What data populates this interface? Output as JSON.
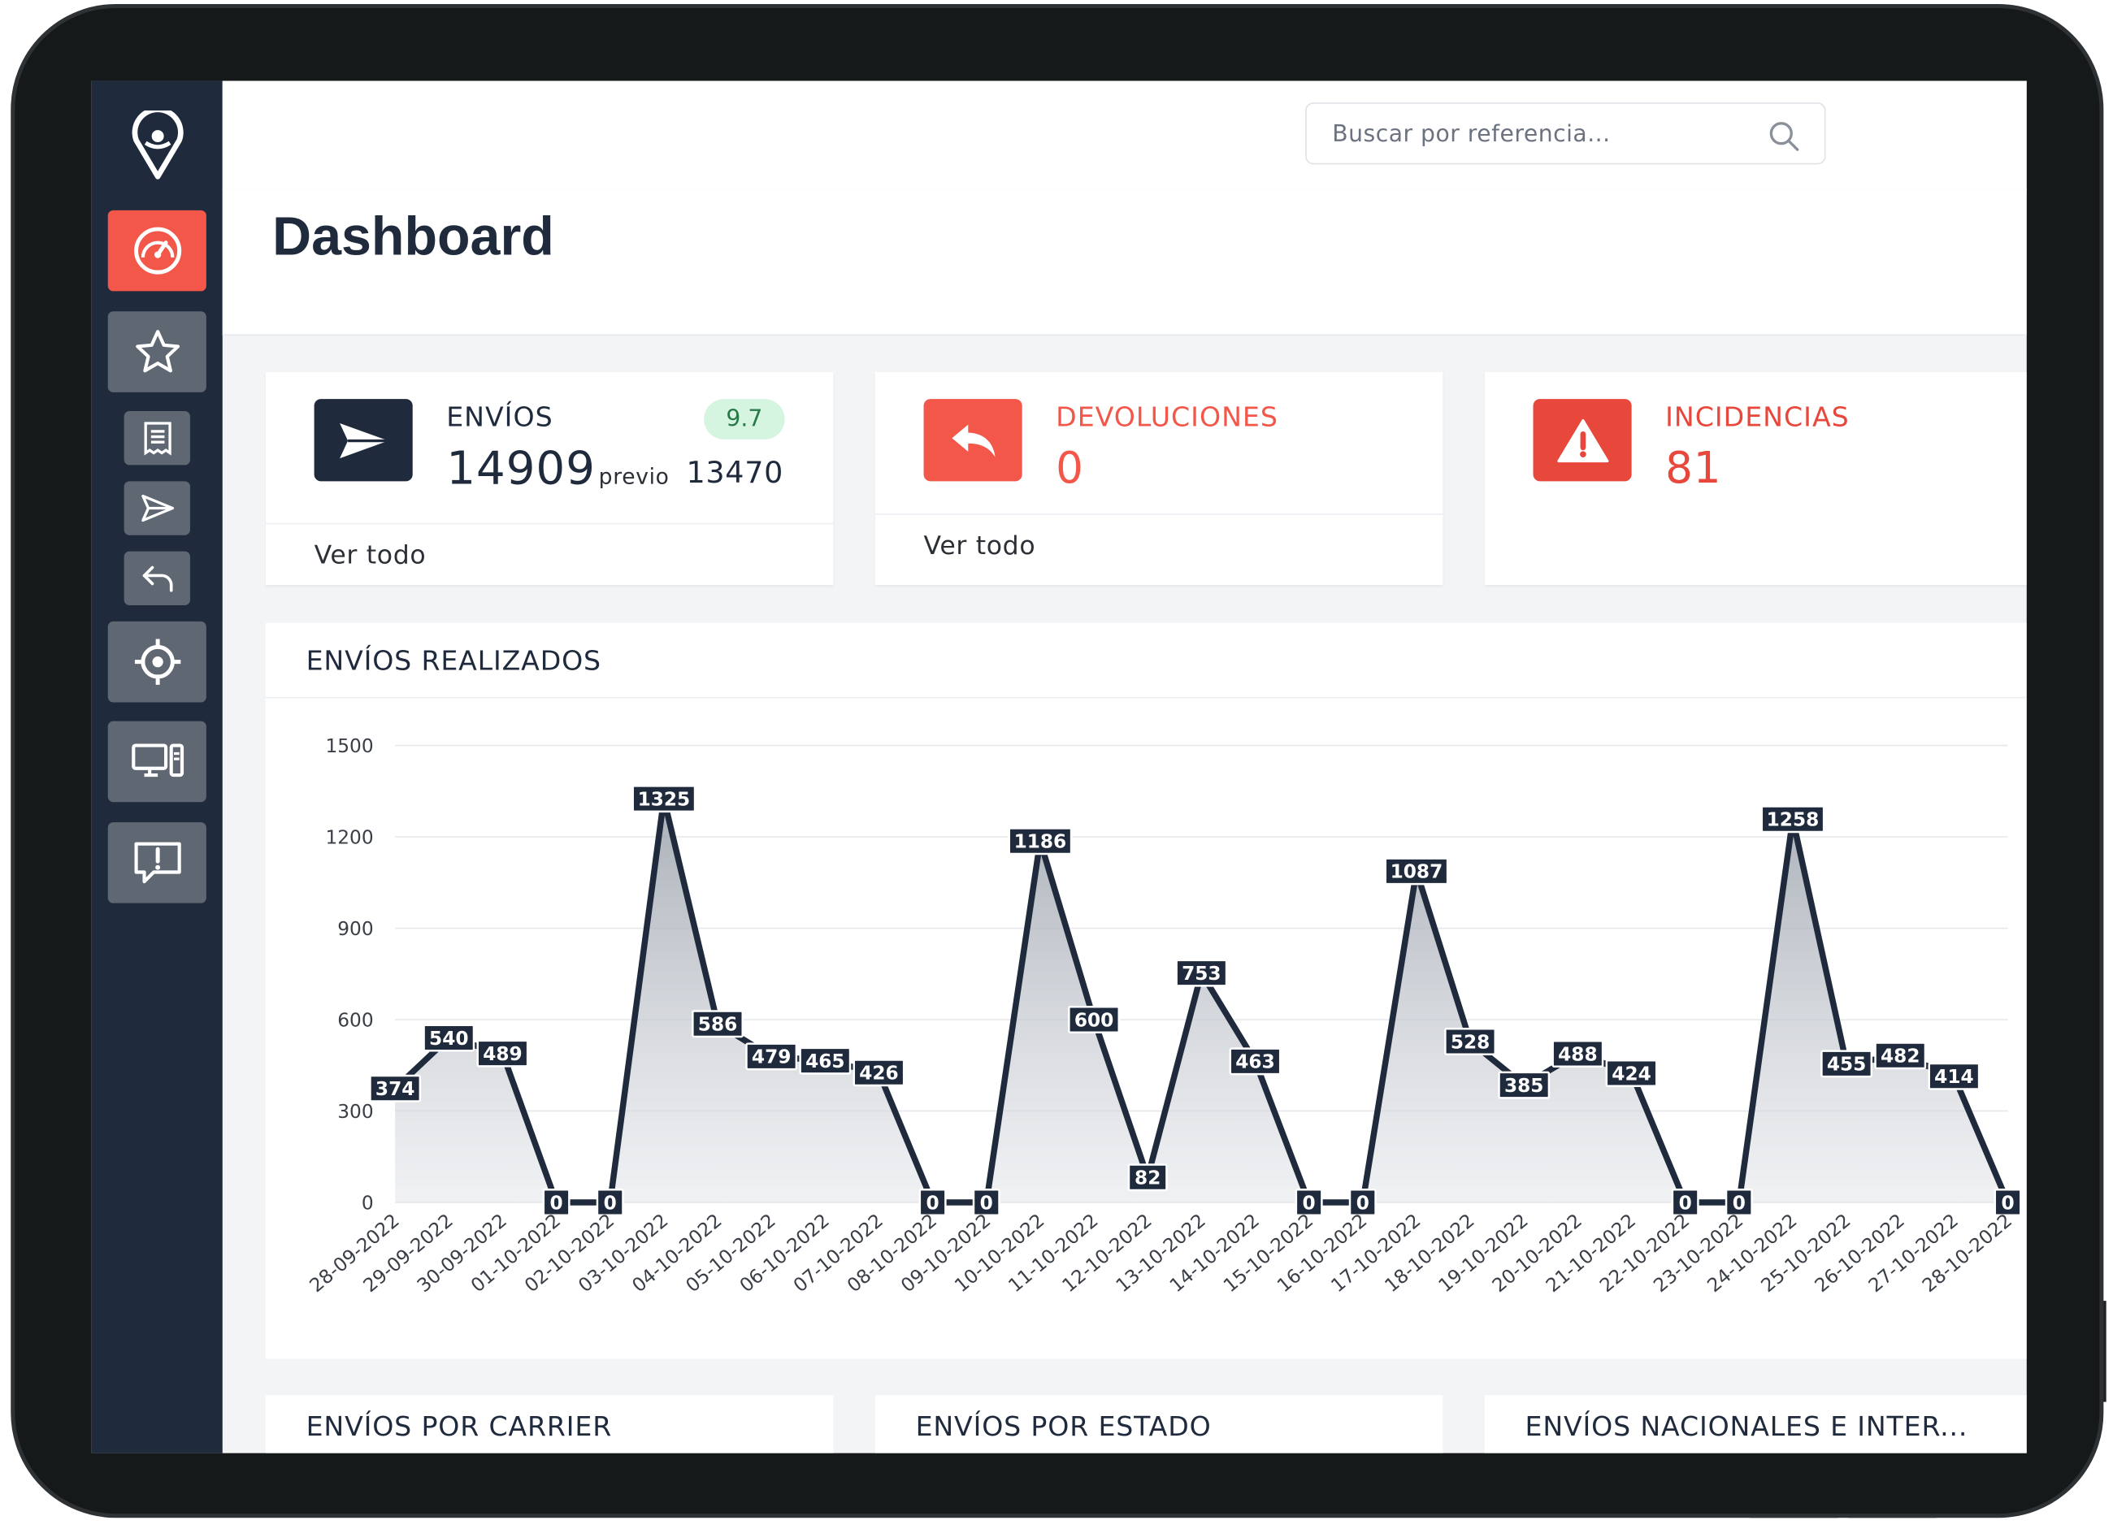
{
  "search": {
    "placeholder": "Buscar por referencia..."
  },
  "page_title": "Dashboard",
  "cards": {
    "envios": {
      "label": "ENVÍOS",
      "value": "14909",
      "previous_label": "previo",
      "previous_value": "13470",
      "change_badge": "9.7",
      "link": "Ver todo",
      "color": "#1f2a3c"
    },
    "devoluciones": {
      "label": "DEVOLUCIONES",
      "value": "0",
      "link": "Ver todo",
      "color": "#f2574a"
    },
    "incidencias": {
      "label": "INCIDENCIAS",
      "value": "81",
      "color": "#e8473b"
    }
  },
  "nav_icons": [
    "logo-pin-icon",
    "dashboard-gauge-icon",
    "star-icon",
    "receipt-icon",
    "send-icon",
    "return-icon",
    "target-icon",
    "devices-icon",
    "alert-message-icon"
  ],
  "chart_title": "ENVÍOS REALIZADOS",
  "chart_data": {
    "type": "area",
    "title": "ENVÍOS REALIZADOS",
    "categories": [
      "28-09-2022",
      "29-09-2022",
      "30-09-2022",
      "01-10-2022",
      "02-10-2022",
      "03-10-2022",
      "04-10-2022",
      "05-10-2022",
      "06-10-2022",
      "07-10-2022",
      "08-10-2022",
      "09-10-2022",
      "10-10-2022",
      "11-10-2022",
      "12-10-2022",
      "13-10-2022",
      "14-10-2022",
      "15-10-2022",
      "16-10-2022",
      "17-10-2022",
      "18-10-2022",
      "19-10-2022",
      "20-10-2022",
      "21-10-2022",
      "22-10-2022",
      "23-10-2022",
      "24-10-2022",
      "25-10-2022",
      "26-10-2022",
      "27-10-2022",
      "28-10-2022"
    ],
    "values": [
      374,
      540,
      489,
      0,
      0,
      1325,
      586,
      479,
      465,
      426,
      0,
      0,
      1186,
      600,
      82,
      753,
      463,
      0,
      0,
      1087,
      528,
      385,
      488,
      424,
      0,
      0,
      1258,
      455,
      482,
      414,
      0
    ],
    "yticks": [
      0,
      300,
      600,
      900,
      1200,
      1500
    ],
    "ylim": [
      0,
      1500
    ],
    "grid": true,
    "line_color": "#1f2a3c"
  },
  "bottom_cards": [
    "ENVÍOS POR CARRIER",
    "ENVÍOS POR ESTADO",
    "ENVÍOS NACIONALES E INTER..."
  ]
}
